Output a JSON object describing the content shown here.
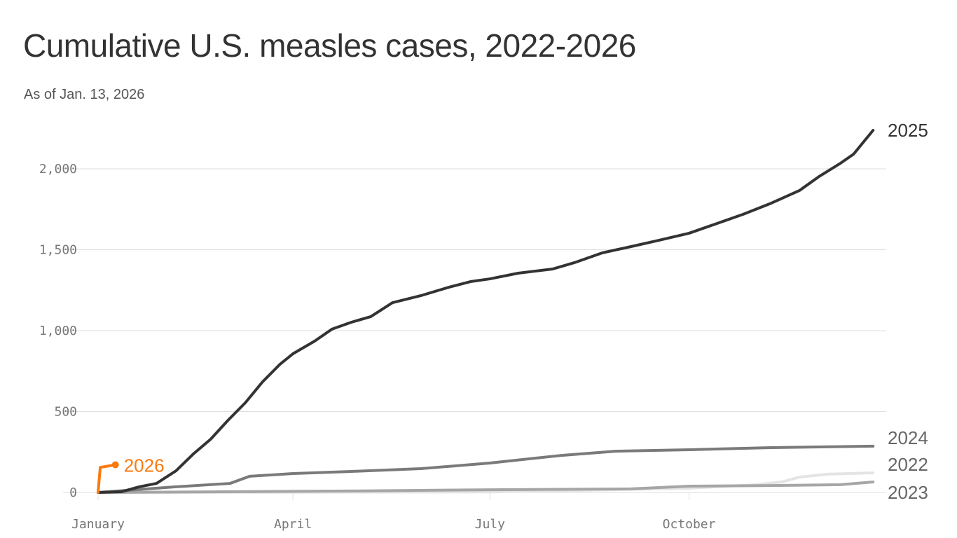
{
  "chart_data": {
    "type": "line",
    "title": "Cumulative U.S. measles cases, 2022-2026",
    "subtitle": "As of Jan. 13, 2026",
    "xlabel": "",
    "ylabel": "",
    "x_ticks": [
      "January",
      "April",
      "July",
      "October"
    ],
    "y_ticks": [
      "0",
      "500",
      "1,000",
      "1,500",
      "2,000"
    ],
    "ylim": [
      0,
      2300
    ],
    "grid": true,
    "legend": "direct labels at line ends",
    "series": [
      {
        "name": "2022",
        "color": "#e4e4e4",
        "points": [
          [
            "01-01",
            0
          ],
          [
            "07-01",
            3
          ],
          [
            "10-01",
            26
          ],
          [
            "11-01",
            48
          ],
          [
            "11-13",
            65
          ],
          [
            "11-21",
            95
          ],
          [
            "12-04",
            113
          ],
          [
            "12-25",
            121
          ]
        ]
      },
      {
        "name": "2023",
        "color": "#a6a6a6",
        "points": [
          [
            "01-01",
            0
          ],
          [
            "04-28",
            9
          ],
          [
            "07-01",
            17
          ],
          [
            "09-04",
            22
          ],
          [
            "10-01",
            39
          ],
          [
            "11-08",
            43
          ],
          [
            "12-10",
            48
          ],
          [
            "12-25",
            65
          ]
        ]
      },
      {
        "name": "2024",
        "color": "#7a7a7a",
        "points": [
          [
            "01-01",
            0
          ],
          [
            "02-06",
            35
          ],
          [
            "03-03",
            56
          ],
          [
            "03-12",
            100
          ],
          [
            "04-01",
            117
          ],
          [
            "04-28",
            130
          ],
          [
            "05-30",
            147
          ],
          [
            "07-01",
            182
          ],
          [
            "08-03",
            229
          ],
          [
            "08-28",
            255
          ],
          [
            "10-01",
            264
          ],
          [
            "11-08",
            277
          ],
          [
            "12-25",
            286
          ]
        ]
      },
      {
        "name": "2025",
        "color": "#333333",
        "points": [
          [
            "01-01",
            0
          ],
          [
            "01-12",
            5
          ],
          [
            "01-20",
            35
          ],
          [
            "01-28",
            56
          ],
          [
            "02-06",
            134
          ],
          [
            "02-14",
            238
          ],
          [
            "02-22",
            329
          ],
          [
            "03-02",
            446
          ],
          [
            "03-10",
            554
          ],
          [
            "03-18",
            684
          ],
          [
            "03-26",
            792
          ],
          [
            "04-01",
            857
          ],
          [
            "04-11",
            935
          ],
          [
            "04-19",
            1009
          ],
          [
            "04-28",
            1052
          ],
          [
            "05-07",
            1087
          ],
          [
            "05-17",
            1173
          ],
          [
            "05-30",
            1216
          ],
          [
            "06-12",
            1268
          ],
          [
            "06-22",
            1303
          ],
          [
            "07-01",
            1320
          ],
          [
            "07-14",
            1355
          ],
          [
            "07-30",
            1381
          ],
          [
            "08-09",
            1420
          ],
          [
            "08-22",
            1481
          ],
          [
            "09-04",
            1519
          ],
          [
            "09-17",
            1558
          ],
          [
            "10-01",
            1602
          ],
          [
            "10-13",
            1658
          ],
          [
            "10-26",
            1719
          ],
          [
            "11-08",
            1788
          ],
          [
            "11-21",
            1866
          ],
          [
            "11-30",
            1952
          ],
          [
            "12-10",
            2035
          ],
          [
            "12-16",
            2091
          ],
          [
            "12-25",
            2238
          ]
        ]
      },
      {
        "name": "2026",
        "color": "#f97a10",
        "points": [
          [
            "01-01",
            0
          ],
          [
            "01-02",
            155
          ],
          [
            "01-09",
            171
          ]
        ]
      }
    ]
  }
}
